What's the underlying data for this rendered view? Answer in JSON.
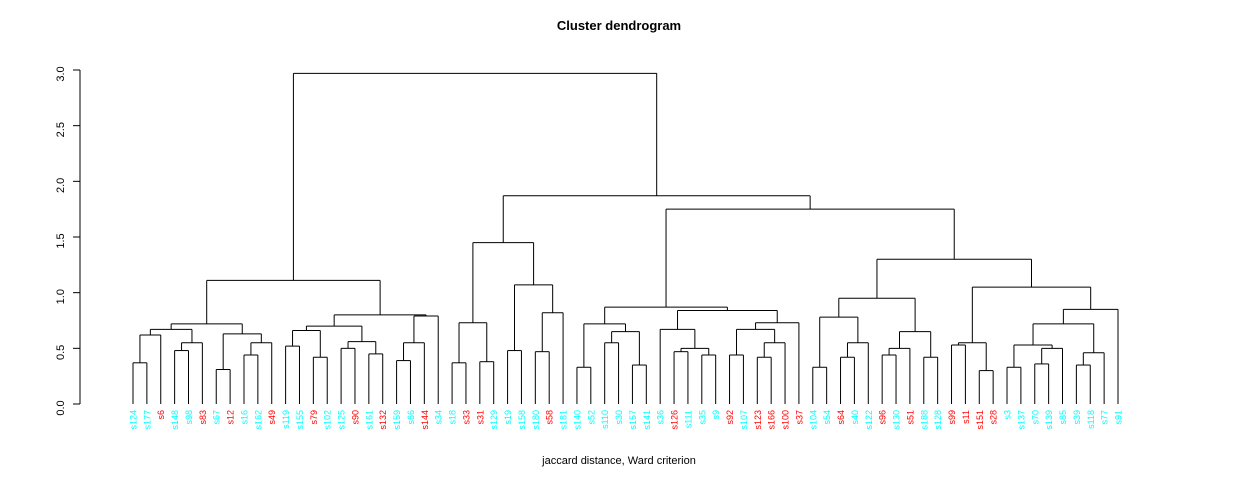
{
  "chart_data": {
    "type": "dendrogram",
    "title": "Cluster dendrogram",
    "xlabel": "jaccard distance, Ward criterion",
    "ylabel": "",
    "ylim": [
      0,
      3
    ],
    "yticks": [
      "0.0",
      "0.5",
      "1.0",
      "1.5",
      "2.0",
      "2.5",
      "3.0"
    ],
    "grid": false,
    "colors": {
      "cyan": "#00FFFF",
      "red": "#FF0000",
      "line": "#000000"
    },
    "leaves": [
      {
        "label": "s124",
        "color": "cyan"
      },
      {
        "label": "s177",
        "color": "cyan"
      },
      {
        "label": "s6",
        "color": "red"
      },
      {
        "label": "s148",
        "color": "cyan"
      },
      {
        "label": "s98",
        "color": "cyan"
      },
      {
        "label": "s83",
        "color": "red"
      },
      {
        "label": "s67",
        "color": "cyan"
      },
      {
        "label": "s12",
        "color": "red"
      },
      {
        "label": "s16",
        "color": "cyan"
      },
      {
        "label": "s162",
        "color": "cyan"
      },
      {
        "label": "s49",
        "color": "red"
      },
      {
        "label": "s119",
        "color": "cyan"
      },
      {
        "label": "s155",
        "color": "cyan"
      },
      {
        "label": "s79",
        "color": "red"
      },
      {
        "label": "s102",
        "color": "cyan"
      },
      {
        "label": "s125",
        "color": "cyan"
      },
      {
        "label": "s90",
        "color": "red"
      },
      {
        "label": "s161",
        "color": "cyan"
      },
      {
        "label": "s132",
        "color": "red"
      },
      {
        "label": "s159",
        "color": "cyan"
      },
      {
        "label": "s66",
        "color": "cyan"
      },
      {
        "label": "s144",
        "color": "red"
      },
      {
        "label": "s34",
        "color": "cyan"
      },
      {
        "label": "s18",
        "color": "cyan"
      },
      {
        "label": "s33",
        "color": "red"
      },
      {
        "label": "s31",
        "color": "red"
      },
      {
        "label": "s129",
        "color": "cyan"
      },
      {
        "label": "s19",
        "color": "cyan"
      },
      {
        "label": "s158",
        "color": "cyan"
      },
      {
        "label": "s180",
        "color": "cyan"
      },
      {
        "label": "s58",
        "color": "red"
      },
      {
        "label": "s181",
        "color": "cyan"
      },
      {
        "label": "s140",
        "color": "cyan"
      },
      {
        "label": "s52",
        "color": "cyan"
      },
      {
        "label": "s110",
        "color": "cyan"
      },
      {
        "label": "s30",
        "color": "cyan"
      },
      {
        "label": "s157",
        "color": "cyan"
      },
      {
        "label": "s141",
        "color": "cyan"
      },
      {
        "label": "s36",
        "color": "cyan"
      },
      {
        "label": "s126",
        "color": "red"
      },
      {
        "label": "s111",
        "color": "cyan"
      },
      {
        "label": "s35",
        "color": "cyan"
      },
      {
        "label": "s9",
        "color": "cyan"
      },
      {
        "label": "s92",
        "color": "red"
      },
      {
        "label": "s107",
        "color": "cyan"
      },
      {
        "label": "s123",
        "color": "red"
      },
      {
        "label": "s166",
        "color": "red"
      },
      {
        "label": "s100",
        "color": "red"
      },
      {
        "label": "s37",
        "color": "red"
      },
      {
        "label": "s104",
        "color": "cyan"
      },
      {
        "label": "s54",
        "color": "cyan"
      },
      {
        "label": "s64",
        "color": "red"
      },
      {
        "label": "s40",
        "color": "cyan"
      },
      {
        "label": "s122",
        "color": "cyan"
      },
      {
        "label": "s96",
        "color": "red"
      },
      {
        "label": "s130",
        "color": "cyan"
      },
      {
        "label": "s51",
        "color": "red"
      },
      {
        "label": "s188",
        "color": "cyan"
      },
      {
        "label": "s128",
        "color": "cyan"
      },
      {
        "label": "s99",
        "color": "red"
      },
      {
        "label": "s11",
        "color": "red"
      },
      {
        "label": "s151",
        "color": "red"
      },
      {
        "label": "s28",
        "color": "red"
      },
      {
        "label": "s3",
        "color": "cyan"
      },
      {
        "label": "s137",
        "color": "cyan"
      },
      {
        "label": "s70",
        "color": "cyan"
      },
      {
        "label": "s139",
        "color": "cyan"
      },
      {
        "label": "s85",
        "color": "cyan"
      },
      {
        "label": "s39",
        "color": "cyan"
      },
      {
        "label": "s118",
        "color": "cyan"
      },
      {
        "label": "s77",
        "color": "cyan"
      },
      {
        "label": "s91",
        "color": "cyan"
      }
    ],
    "tree": {
      "h": 2.97,
      "c": [
        {
          "h": 1.11,
          "c": [
            {
              "h": 0.72,
              "c": [
                {
                  "h": 0.67,
                  "c": [
                    {
                      "h": 0.62,
                      "c": [
                        {
                          "h": 0.37,
                          "c": [
                            0,
                            1
                          ]
                        },
                        2
                      ]
                    },
                    {
                      "h": 0.55,
                      "c": [
                        {
                          "h": 0.48,
                          "c": [
                            3,
                            4
                          ]
                        },
                        5
                      ]
                    }
                  ]
                },
                {
                  "h": 0.63,
                  "c": [
                    {
                      "h": 0.31,
                      "c": [
                        6,
                        7
                      ]
                    },
                    {
                      "h": 0.55,
                      "c": [
                        {
                          "h": 0.44,
                          "c": [
                            8,
                            9
                          ]
                        },
                        10
                      ]
                    }
                  ]
                }
              ]
            },
            {
              "h": 0.8,
              "c": [
                {
                  "h": 0.7,
                  "c": [
                    {
                      "h": 0.66,
                      "c": [
                        {
                          "h": 0.52,
                          "c": [
                            11,
                            12
                          ]
                        },
                        {
                          "h": 0.42,
                          "c": [
                            13,
                            14
                          ]
                        }
                      ]
                    },
                    {
                      "h": 0.56,
                      "c": [
                        {
                          "h": 0.5,
                          "c": [
                            15,
                            16
                          ]
                        },
                        {
                          "h": 0.45,
                          "c": [
                            17,
                            18
                          ]
                        }
                      ]
                    }
                  ]
                },
                {
                  "h": 0.79,
                  "c": [
                    {
                      "h": 0.55,
                      "c": [
                        {
                          "h": 0.39,
                          "c": [
                            19,
                            20
                          ]
                        },
                        21
                      ]
                    },
                    22
                  ]
                }
              ]
            }
          ]
        },
        {
          "h": 1.87,
          "c": [
            {
              "h": 1.45,
              "c": [
                {
                  "h": 0.73,
                  "c": [
                    {
                      "h": 0.37,
                      "c": [
                        23,
                        24
                      ]
                    },
                    {
                      "h": 0.38,
                      "c": [
                        25,
                        26
                      ]
                    }
                  ]
                },
                {
                  "h": 1.07,
                  "c": [
                    {
                      "h": 0.48,
                      "c": [
                        27,
                        28
                      ]
                    },
                    {
                      "h": 0.82,
                      "c": [
                        {
                          "h": 0.47,
                          "c": [
                            29,
                            30
                          ]
                        },
                        31
                      ]
                    }
                  ]
                }
              ]
            },
            {
              "h": 1.75,
              "c": [
                {
                  "h": 0.87,
                  "c": [
                    {
                      "h": 0.72,
                      "c": [
                        {
                          "h": 0.33,
                          "c": [
                            32,
                            33
                          ]
                        },
                        {
                          "h": 0.65,
                          "c": [
                            {
                              "h": 0.55,
                              "c": [
                                34,
                                35
                              ]
                            },
                            {
                              "h": 0.35,
                              "c": [
                                36,
                                37
                              ]
                            }
                          ]
                        }
                      ]
                    },
                    {
                      "h": 0.84,
                      "c": [
                        {
                          "h": 0.67,
                          "c": [
                            38,
                            {
                              "h": 0.5,
                              "c": [
                                {
                                  "h": 0.47,
                                  "c": [
                                    39,
                                    40
                                  ]
                                },
                                {
                                  "h": 0.44,
                                  "c": [
                                    41,
                                    42
                                  ]
                                }
                              ]
                            }
                          ]
                        },
                        {
                          "h": 0.73,
                          "c": [
                            {
                              "h": 0.67,
                              "c": [
                                {
                                  "h": 0.44,
                                  "c": [
                                    43,
                                    44
                                  ]
                                },
                                {
                                  "h": 0.55,
                                  "c": [
                                    {
                                      "h": 0.42,
                                      "c": [
                                        45,
                                        46
                                      ]
                                    },
                                    47
                                  ]
                                }
                              ]
                            },
                            48
                          ]
                        }
                      ]
                    }
                  ]
                },
                {
                  "h": 1.3,
                  "c": [
                    {
                      "h": 0.95,
                      "c": [
                        {
                          "h": 0.78,
                          "c": [
                            {
                              "h": 0.33,
                              "c": [
                                49,
                                50
                              ]
                            },
                            {
                              "h": 0.55,
                              "c": [
                                {
                                  "h": 0.42,
                                  "c": [
                                    51,
                                    52
                                  ]
                                },
                                53
                              ]
                            }
                          ]
                        },
                        {
                          "h": 0.65,
                          "c": [
                            {
                              "h": 0.5,
                              "c": [
                                {
                                  "h": 0.44,
                                  "c": [
                                    54,
                                    55
                                  ]
                                },
                                56
                              ]
                            },
                            {
                              "h": 0.42,
                              "c": [
                                57,
                                58
                              ]
                            }
                          ]
                        }
                      ]
                    },
                    {
                      "h": 1.05,
                      "c": [
                        {
                          "h": 0.55,
                          "c": [
                            {
                              "h": 0.53,
                              "c": [
                                59,
                                60
                              ]
                            },
                            {
                              "h": 0.3,
                              "c": [
                                61,
                                62
                              ]
                            }
                          ]
                        },
                        {
                          "h": 0.85,
                          "c": [
                            {
                              "h": 0.72,
                              "c": [
                                {
                                  "h": 0.53,
                                  "c": [
                                    {
                                      "h": 0.33,
                                      "c": [
                                        63,
                                        64
                                      ]
                                    },
                                    {
                                      "h": 0.5,
                                      "c": [
                                        {
                                          "h": 0.36,
                                          "c": [
                                            65,
                                            66
                                          ]
                                        },
                                        67
                                      ]
                                    }
                                  ]
                                },
                                {
                                  "h": 0.46,
                                  "c": [
                                    {
                                      "h": 0.35,
                                      "c": [
                                        68,
                                        69
                                      ]
                                    },
                                    70
                                  ]
                                }
                              ]
                            },
                            71
                          ]
                        }
                      ]
                    }
                  ]
                }
              ]
            }
          ]
        }
      ]
    }
  }
}
